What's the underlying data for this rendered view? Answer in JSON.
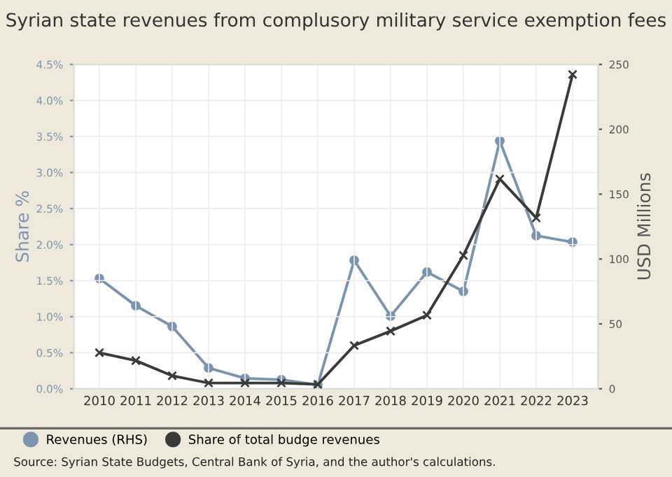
{
  "chart_data": {
    "type": "line",
    "title": "Syrian state revenues from complusory military service exemption fees",
    "categories": [
      "2010",
      "2011",
      "2012",
      "2013",
      "2014",
      "2015",
      "2016",
      "2017",
      "2018",
      "2019",
      "2020",
      "2021",
      "2022",
      "2023"
    ],
    "series": [
      {
        "name": "Revenues (RHS)",
        "color": "#7a95ad",
        "axis": "y2",
        "marker": "circle",
        "values": [
          85,
          64,
          48,
          16,
          8,
          7,
          3,
          99,
          56,
          90,
          75,
          191,
          118,
          113
        ]
      },
      {
        "name": "Share of total budge revenues",
        "color": "#3a3a3a",
        "marker": "cross",
        "values": [
          0.5,
          0.39,
          0.18,
          0.08,
          0.08,
          0.08,
          0.06,
          0.6,
          0.8,
          1.02,
          1.85,
          2.91,
          2.37,
          4.36
        ]
      }
    ],
    "ylabel": "Share %",
    "y2label": "USD Millions",
    "ylim": [
      0,
      4.5
    ],
    "yticks": [
      {
        "value": 0,
        "label": "0.0%"
      },
      {
        "value": 0.5,
        "label": "0.5%"
      },
      {
        "value": 1,
        "label": "1.0%"
      },
      {
        "value": 1.5,
        "label": "1.5%"
      },
      {
        "value": 2,
        "label": "2.0%"
      },
      {
        "value": 2.5,
        "label": "2.5%"
      },
      {
        "value": 3,
        "label": "3.0%"
      },
      {
        "value": 3.5,
        "label": "3.5%"
      },
      {
        "value": 4,
        "label": "4.0%"
      },
      {
        "value": 4.5,
        "label": "4.5%"
      }
    ],
    "y2lim": [
      0,
      250
    ],
    "y2ticks": [
      0,
      50,
      100,
      150,
      200,
      250
    ],
    "grid": true,
    "legend": "bottom",
    "line_style": "solid",
    "annotations": [
      "Source: Syrian State Budgets, Central Bank of Syria, and the author's calculations."
    ]
  }
}
